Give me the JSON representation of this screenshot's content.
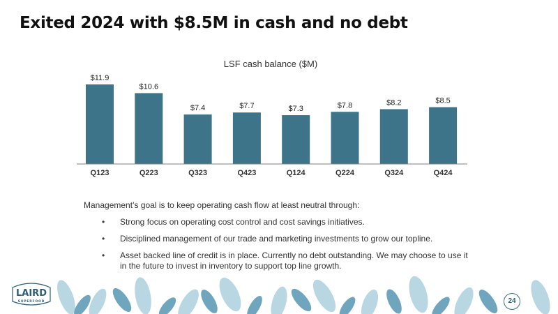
{
  "page": {
    "title": "Exited 2024 with $8.5M in cash and no debt",
    "page_number": "24",
    "logo_text": "LAIRD SUPERFOOD"
  },
  "colors": {
    "bar": "#3d7489",
    "axis": "#7f7f7f",
    "leaf_dark": "#6fa6bd",
    "leaf_light": "#b9d7e3"
  },
  "chart_data": {
    "type": "bar",
    "title": "LSF cash balance ($M)",
    "categories": [
      "Q123",
      "Q223",
      "Q323",
      "Q423",
      "Q124",
      "Q224",
      "Q324",
      "Q424"
    ],
    "values": [
      11.9,
      10.6,
      7.4,
      7.7,
      7.3,
      7.8,
      8.2,
      8.5
    ],
    "value_labels": [
      "$11.9",
      "$10.6",
      "$7.4",
      "$7.7",
      "$7.3",
      "$7.8",
      "$8.2",
      "$8.5"
    ],
    "ylim": [
      0,
      12
    ],
    "grid": false,
    "legend": "none"
  },
  "body": {
    "intro": "Management’s goal is to keep operating cash flow at least neutral through:",
    "bullet_marker": "•",
    "bullets": [
      "Strong focus on operating cost control and cost savings initiatives.",
      "Disciplined management of our trade and marketing investments to grow our topline.",
      "Asset backed line of credit is in place. Currently no debt outstanding. We may choose to use it in the future to invest in inventory to support top line growth."
    ]
  }
}
